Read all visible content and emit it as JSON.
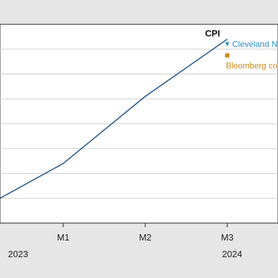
{
  "chart_data": {
    "type": "line",
    "categories": [
      "",
      "M1",
      "M2",
      "M3"
    ],
    "year_labels": [
      "2023",
      "2024"
    ],
    "grid": true,
    "ylim": [
      0,
      8
    ],
    "series": [
      {
        "name": "CPI",
        "color": "#2b5b8c",
        "values": [
          1.0,
          2.4,
          5.1,
          7.4
        ]
      }
    ],
    "annotations": [
      {
        "label": "Cleveland No",
        "value": 7.2,
        "color": "#2a8fc7",
        "marker": "triangle-down"
      },
      {
        "label": "Bloomberg con",
        "value": 6.75,
        "color": "#d08a1c",
        "marker": "square"
      }
    ]
  }
}
